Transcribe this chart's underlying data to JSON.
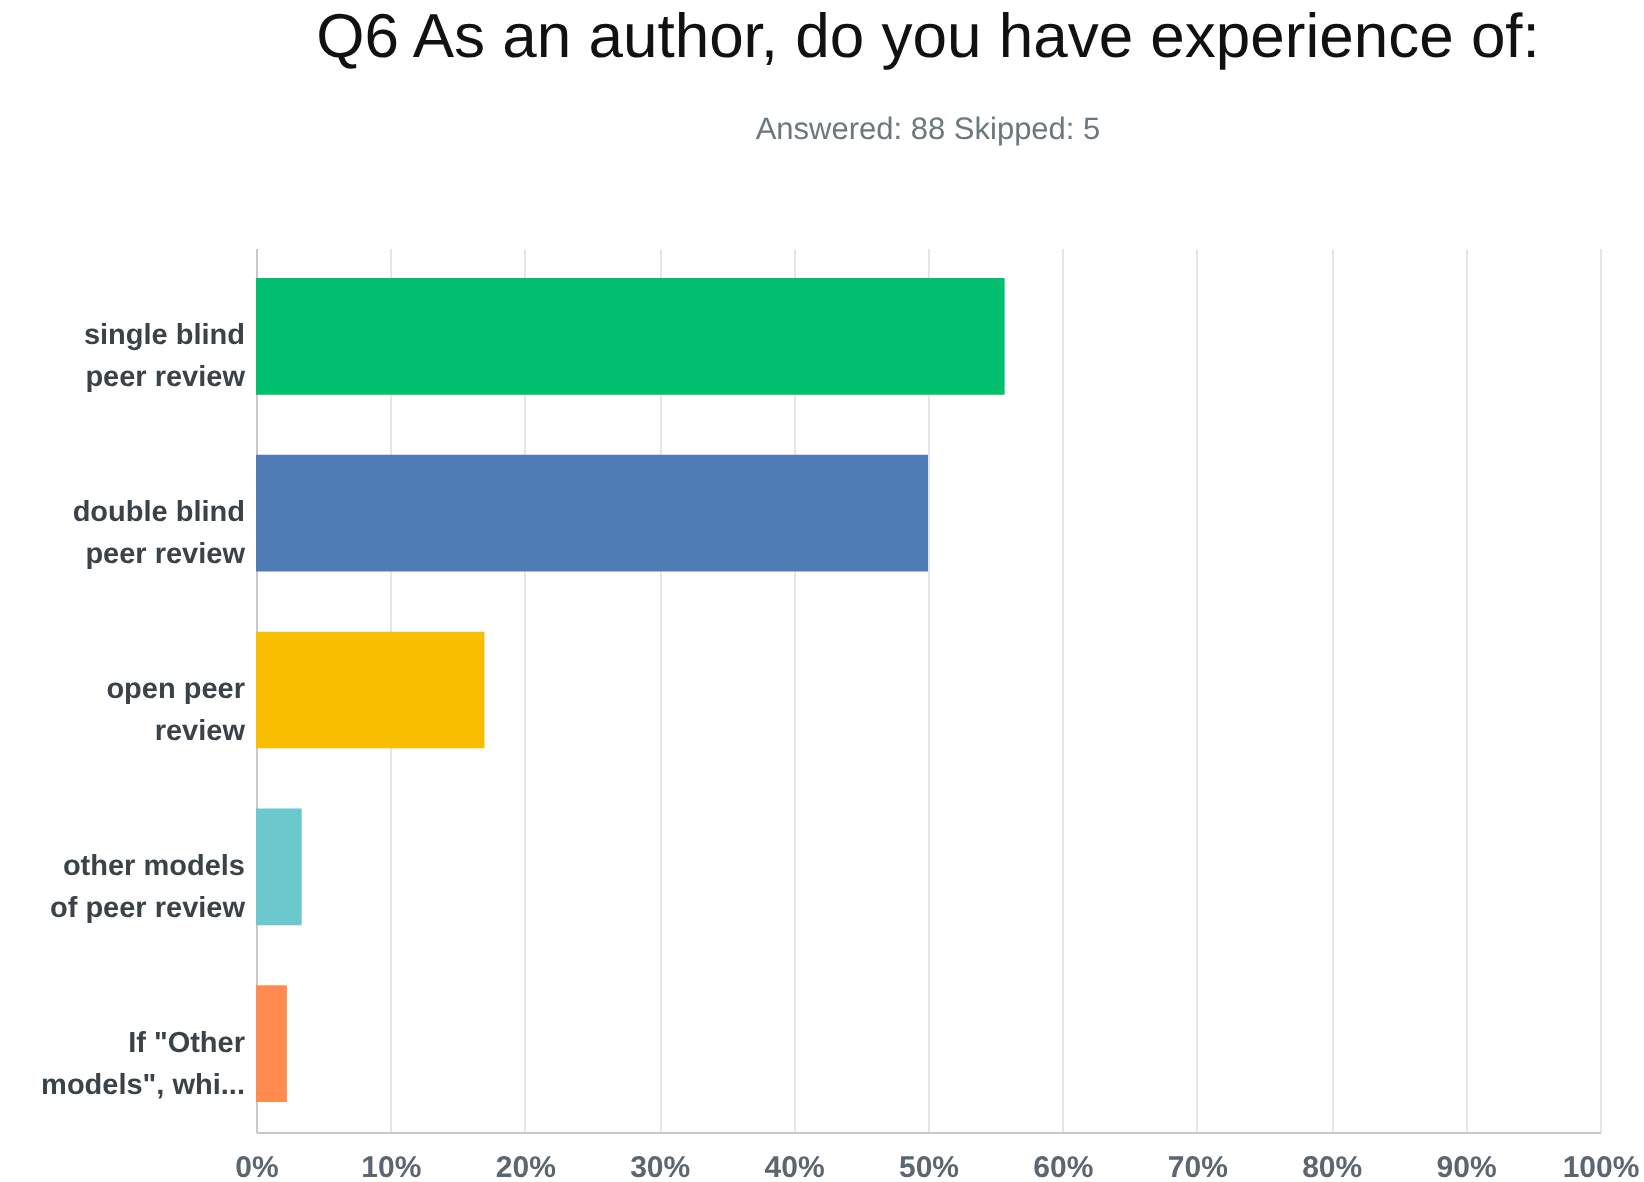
{
  "chart_data": {
    "type": "bar",
    "orientation": "horizontal",
    "title": "Q6 As an author, do you have experience of:",
    "subtitle": "Answered: 88      Skipped: 5",
    "categories": [
      "single blind peer review",
      "double blind peer review",
      "open peer review",
      "other models of peer review",
      "If \"Other models\", whi..."
    ],
    "values": [
      55.7,
      50,
      17,
      3.4,
      2.3
    ],
    "colors": [
      "#00bf6f",
      "#507cb6",
      "#f9be00",
      "#6bc8cd",
      "#ff8b4f"
    ],
    "xlim": [
      0,
      100
    ],
    "xticks": [
      {
        "value": 0,
        "label": "0%"
      },
      {
        "value": 10,
        "label": "10%"
      },
      {
        "value": 20,
        "label": "20%"
      },
      {
        "value": 30,
        "label": "30%"
      },
      {
        "value": 40,
        "label": "40%"
      },
      {
        "value": 50,
        "label": "50%"
      },
      {
        "value": 60,
        "label": "60%"
      },
      {
        "value": 70,
        "label": "70%"
      },
      {
        "value": 80,
        "label": "80%"
      },
      {
        "value": 90,
        "label": "90%"
      },
      {
        "value": 100,
        "label": "100%"
      }
    ],
    "grid": true
  }
}
